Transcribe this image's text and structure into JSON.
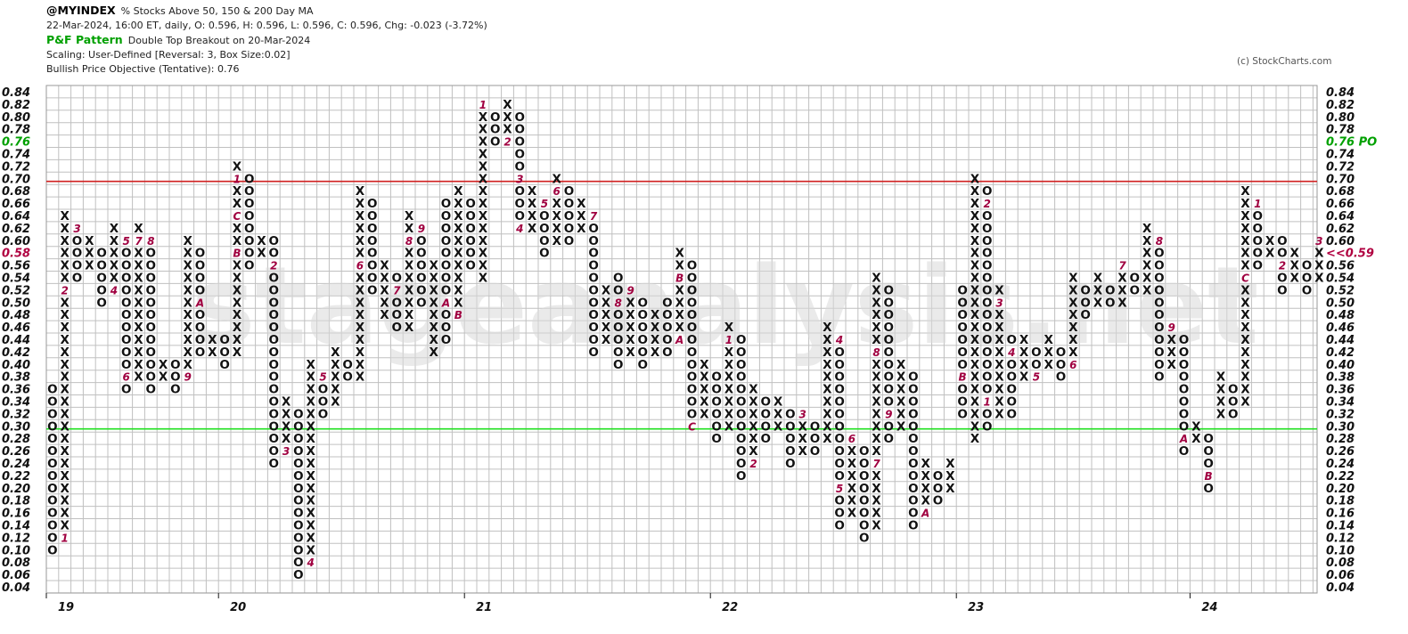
{
  "header": {
    "symbol": "@MYINDEX",
    "description": "% Stocks Above 50, 150 & 200 Day MA",
    "ohlc": "22-Mar-2024, 16:00 ET, daily, O: 0.596, H: 0.596, L: 0.596, C: 0.596, Chg: -0.023 (-3.72%)",
    "pf_label": "P&F Pattern",
    "pf_value": "Double Top Breakout on 20-Mar-2024",
    "scaling": "Scaling: User-Defined [Reversal: 3, Box Size:0.02]",
    "objective": "Bullish Price Objective (Tentative): 0.76"
  },
  "copyright": "(c) StockCharts.com",
  "watermark": "stageanalysis.net",
  "colors": {
    "grid": "#c0c0c0",
    "resistance_line": "#d02020",
    "support_line": "#20e020",
    "objective": "#00a000",
    "current": "#b00040",
    "month_marker": "#a00040",
    "mark": "#111111"
  },
  "chart_data": {
    "type": "point-and-figure",
    "box_size": 0.02,
    "reversal": 3,
    "ylim": [
      0.04,
      0.84
    ],
    "y_ticks": [
      "0.84",
      "0.82",
      "0.80",
      "0.78",
      "0.76",
      "0.74",
      "0.72",
      "0.70",
      "0.68",
      "0.66",
      "0.64",
      "0.62",
      "0.60",
      "0.58",
      "0.56",
      "0.54",
      "0.52",
      "0.50",
      "0.48",
      "0.46",
      "0.44",
      "0.42",
      "0.40",
      "0.38",
      "0.36",
      "0.34",
      "0.32",
      "0.30",
      "0.28",
      "0.26",
      "0.24",
      "0.22",
      "0.20",
      "0.18",
      "0.16",
      "0.14",
      "0.12",
      "0.10",
      "0.08",
      "0.06",
      "0.04"
    ],
    "x_labels": [
      {
        "label": "19",
        "col": 0
      },
      {
        "label": "20",
        "col": 14
      },
      {
        "label": "21",
        "col": 34
      },
      {
        "label": "22",
        "col": 54
      },
      {
        "label": "23",
        "col": 74
      },
      {
        "label": "24",
        "col": 93
      }
    ],
    "objective_label": "0.76 PO",
    "current_label": "<<0.59",
    "current_value": 0.58,
    "objective_value": 0.76,
    "resistance": 0.695,
    "support": 0.295,
    "columns": [
      {
        "t": "O",
        "h": 0.36,
        "l": 0.1,
        "m": {}
      },
      {
        "t": "X",
        "h": 0.64,
        "l": 0.12,
        "m": {
          "0.12": "1",
          "0.52": "2"
        }
      },
      {
        "t": "O",
        "h": 0.62,
        "l": 0.54,
        "m": {
          "0.62": "3"
        }
      },
      {
        "t": "X",
        "h": 0.6,
        "l": 0.56,
        "m": {}
      },
      {
        "t": "O",
        "h": 0.58,
        "l": 0.5,
        "m": {}
      },
      {
        "t": "X",
        "h": 0.62,
        "l": 0.52,
        "m": {
          "0.52": "4"
        }
      },
      {
        "t": "O",
        "h": 0.6,
        "l": 0.36,
        "m": {
          "0.60": "5",
          "0.38": "6"
        }
      },
      {
        "t": "X",
        "h": 0.62,
        "l": 0.38,
        "m": {
          "0.60": "7"
        }
      },
      {
        "t": "O",
        "h": 0.6,
        "l": 0.36,
        "m": {
          "0.60": "8"
        }
      },
      {
        "t": "X",
        "h": 0.4,
        "l": 0.38,
        "m": {}
      },
      {
        "t": "O",
        "h": 0.4,
        "l": 0.36,
        "m": {}
      },
      {
        "t": "X",
        "h": 0.6,
        "l": 0.38,
        "m": {
          "0.38": "9"
        }
      },
      {
        "t": "O",
        "h": 0.58,
        "l": 0.42,
        "m": {
          "0.50": "A"
        }
      },
      {
        "t": "X",
        "h": 0.44,
        "l": 0.42,
        "m": {}
      },
      {
        "t": "O",
        "h": 0.44,
        "l": 0.4,
        "m": {}
      },
      {
        "t": "X",
        "h": 0.72,
        "l": 0.42,
        "m": {
          "0.58": "B",
          "0.64": "C",
          "0.70": "1"
        }
      },
      {
        "t": "O",
        "h": 0.7,
        "l": 0.56,
        "m": {}
      },
      {
        "t": "X",
        "h": 0.6,
        "l": 0.58,
        "m": {}
      },
      {
        "t": "O",
        "h": 0.6,
        "l": 0.24,
        "m": {
          "0.56": "2"
        }
      },
      {
        "t": "X",
        "h": 0.34,
        "l": 0.26,
        "m": {
          "0.26": "3"
        }
      },
      {
        "t": "O",
        "h": 0.32,
        "l": 0.06,
        "m": {}
      },
      {
        "t": "X",
        "h": 0.4,
        "l": 0.08,
        "m": {
          "0.08": "4"
        }
      },
      {
        "t": "O",
        "h": 0.38,
        "l": 0.32,
        "m": {
          "0.38": "5"
        }
      },
      {
        "t": "X",
        "h": 0.42,
        "l": 0.34,
        "m": {}
      },
      {
        "t": "O",
        "h": 0.4,
        "l": 0.38,
        "m": {}
      },
      {
        "t": "X",
        "h": 0.68,
        "l": 0.38,
        "m": {
          "0.56": "6"
        }
      },
      {
        "t": "O",
        "h": 0.66,
        "l": 0.52,
        "m": {}
      },
      {
        "t": "X",
        "h": 0.56,
        "l": 0.48,
        "m": {}
      },
      {
        "t": "O",
        "h": 0.54,
        "l": 0.46,
        "m": {
          "0.52": "7"
        }
      },
      {
        "t": "X",
        "h": 0.64,
        "l": 0.46,
        "m": {
          "0.60": "8"
        }
      },
      {
        "t": "O",
        "h": 0.62,
        "l": 0.5,
        "m": {
          "0.62": "9"
        }
      },
      {
        "t": "X",
        "h": 0.56,
        "l": 0.42,
        "m": {}
      },
      {
        "t": "O",
        "h": 0.66,
        "l": 0.44,
        "m": {
          "0.50": "A"
        }
      },
      {
        "t": "X",
        "h": 0.68,
        "l": 0.48,
        "m": {
          "0.48": "B"
        }
      },
      {
        "t": "O",
        "h": 0.66,
        "l": 0.56,
        "m": {}
      },
      {
        "t": "X",
        "h": 0.82,
        "l": 0.54,
        "m": {
          "0.82": "1"
        }
      },
      {
        "t": "O",
        "h": 0.8,
        "l": 0.76,
        "m": {}
      },
      {
        "t": "X",
        "h": 0.82,
        "l": 0.76,
        "m": {
          "0.76": "2"
        }
      },
      {
        "t": "O",
        "h": 0.8,
        "l": 0.62,
        "m": {
          "0.70": "3",
          "0.62": "4"
        }
      },
      {
        "t": "X",
        "h": 0.68,
        "l": 0.62,
        "m": {}
      },
      {
        "t": "O",
        "h": 0.66,
        "l": 0.58,
        "m": {
          "0.66": "5"
        }
      },
      {
        "t": "X",
        "h": 0.7,
        "l": 0.6,
        "m": {
          "0.68": "6"
        }
      },
      {
        "t": "O",
        "h": 0.68,
        "l": 0.6,
        "m": {}
      },
      {
        "t": "X",
        "h": 0.66,
        "l": 0.62,
        "m": {}
      },
      {
        "t": "O",
        "h": 0.64,
        "l": 0.42,
        "m": {
          "0.64": "7"
        }
      },
      {
        "t": "X",
        "h": 0.52,
        "l": 0.44,
        "m": {}
      },
      {
        "t": "O",
        "h": 0.54,
        "l": 0.4,
        "m": {
          "0.50": "8"
        }
      },
      {
        "t": "X",
        "h": 0.52,
        "l": 0.42,
        "m": {
          "0.52": "9"
        }
      },
      {
        "t": "O",
        "h": 0.5,
        "l": 0.4,
        "m": {}
      },
      {
        "t": "X",
        "h": 0.48,
        "l": 0.42,
        "m": {}
      },
      {
        "t": "O",
        "h": 0.5,
        "l": 0.42,
        "m": {}
      },
      {
        "t": "X",
        "h": 0.58,
        "l": 0.44,
        "m": {
          "0.54": "B",
          "0.44": "A"
        }
      },
      {
        "t": "O",
        "h": 0.56,
        "l": 0.3,
        "m": {
          "0.30": "C"
        }
      },
      {
        "t": "X",
        "h": 0.4,
        "l": 0.32,
        "m": {}
      },
      {
        "t": "O",
        "h": 0.38,
        "l": 0.28,
        "m": {}
      },
      {
        "t": "X",
        "h": 0.46,
        "l": 0.3,
        "m": {
          "0.44": "1"
        }
      },
      {
        "t": "O",
        "h": 0.44,
        "l": 0.22,
        "m": {}
      },
      {
        "t": "X",
        "h": 0.36,
        "l": 0.24,
        "m": {
          "0.24": "2"
        }
      },
      {
        "t": "O",
        "h": 0.34,
        "l": 0.28,
        "m": {}
      },
      {
        "t": "X",
        "h": 0.34,
        "l": 0.3,
        "m": {}
      },
      {
        "t": "O",
        "h": 0.32,
        "l": 0.24,
        "m": {}
      },
      {
        "t": "X",
        "h": 0.32,
        "l": 0.26,
        "m": {
          "0.32": "3"
        }
      },
      {
        "t": "O",
        "h": 0.3,
        "l": 0.26,
        "m": {}
      },
      {
        "t": "X",
        "h": 0.46,
        "l": 0.28,
        "m": {}
      },
      {
        "t": "O",
        "h": 0.44,
        "l": 0.14,
        "m": {
          "0.44": "4",
          "0.20": "5"
        }
      },
      {
        "t": "X",
        "h": 0.28,
        "l": 0.16,
        "m": {
          "0.28": "6"
        }
      },
      {
        "t": "O",
        "h": 0.26,
        "l": 0.12,
        "m": {}
      },
      {
        "t": "X",
        "h": 0.54,
        "l": 0.14,
        "m": {
          "0.42": "8",
          "0.24": "7"
        }
      },
      {
        "t": "O",
        "h": 0.52,
        "l": 0.28,
        "m": {
          "0.32": "9"
        }
      },
      {
        "t": "X",
        "h": 0.4,
        "l": 0.3,
        "m": {}
      },
      {
        "t": "O",
        "h": 0.38,
        "l": 0.14,
        "m": {}
      },
      {
        "t": "X",
        "h": 0.24,
        "l": 0.16,
        "m": {
          "0.16": "A"
        }
      },
      {
        "t": "O",
        "h": 0.22,
        "l": 0.18,
        "m": {}
      },
      {
        "t": "X",
        "h": 0.24,
        "l": 0.2,
        "m": {}
      },
      {
        "t": "O",
        "h": 0.52,
        "l": 0.32,
        "m": {
          "0.54": "C",
          "0.38": "B"
        }
      },
      {
        "t": "X",
        "h": 0.7,
        "l": 0.28,
        "m": {}
      },
      {
        "t": "O",
        "h": 0.68,
        "l": 0.3,
        "m": {
          "0.66": "2",
          "0.34": "1"
        }
      },
      {
        "t": "X",
        "h": 0.52,
        "l": 0.32,
        "m": {
          "0.50": "3"
        }
      },
      {
        "t": "O",
        "h": 0.44,
        "l": 0.32,
        "m": {
          "0.42": "4"
        }
      },
      {
        "t": "X",
        "h": 0.44,
        "l": 0.38,
        "m": {}
      },
      {
        "t": "O",
        "h": 0.42,
        "l": 0.38,
        "m": {
          "0.38": "5"
        }
      },
      {
        "t": "X",
        "h": 0.44,
        "l": 0.4,
        "m": {}
      },
      {
        "t": "O",
        "h": 0.42,
        "l": 0.38,
        "m": {}
      },
      {
        "t": "X",
        "h": 0.54,
        "l": 0.4,
        "m": {
          "0.40": "6"
        }
      },
      {
        "t": "O",
        "h": 0.52,
        "l": 0.48,
        "m": {}
      },
      {
        "t": "X",
        "h": 0.54,
        "l": 0.5,
        "m": {}
      },
      {
        "t": "O",
        "h": 0.52,
        "l": 0.5,
        "m": {}
      },
      {
        "t": "X",
        "h": 0.56,
        "l": 0.5,
        "m": {
          "0.56": "7"
        }
      },
      {
        "t": "O",
        "h": 0.54,
        "l": 0.52,
        "m": {}
      },
      {
        "t": "X",
        "h": 0.62,
        "l": 0.52,
        "m": {}
      },
      {
        "t": "O",
        "h": 0.6,
        "l": 0.38,
        "m": {
          "0.60": "8"
        }
      },
      {
        "t": "X",
        "h": 0.46,
        "l": 0.4,
        "m": {
          "0.46": "9"
        }
      },
      {
        "t": "O",
        "h": 0.44,
        "l": 0.26,
        "m": {
          "0.28": "A"
        }
      },
      {
        "t": "X",
        "h": 0.3,
        "l": 0.28,
        "m": {}
      },
      {
        "t": "O",
        "h": 0.28,
        "l": 0.2,
        "m": {
          "0.22": "B"
        }
      },
      {
        "t": "X",
        "h": 0.38,
        "l": 0.32,
        "m": {}
      },
      {
        "t": "O",
        "h": 0.36,
        "l": 0.32,
        "m": {}
      },
      {
        "t": "X",
        "h": 0.68,
        "l": 0.34,
        "m": {
          "0.54": "C"
        }
      },
      {
        "t": "O",
        "h": 0.66,
        "l": 0.56,
        "m": {
          "0.66": "1"
        }
      },
      {
        "t": "X",
        "h": 0.6,
        "l": 0.58,
        "m": {}
      },
      {
        "t": "O",
        "h": 0.6,
        "l": 0.52,
        "m": {
          "0.56": "2"
        }
      },
      {
        "t": "X",
        "h": 0.58,
        "l": 0.54,
        "m": {}
      },
      {
        "t": "O",
        "h": 0.56,
        "l": 0.52,
        "m": {}
      },
      {
        "t": "X",
        "h": 0.6,
        "l": 0.54,
        "m": {
          "0.60": "3"
        }
      }
    ]
  }
}
